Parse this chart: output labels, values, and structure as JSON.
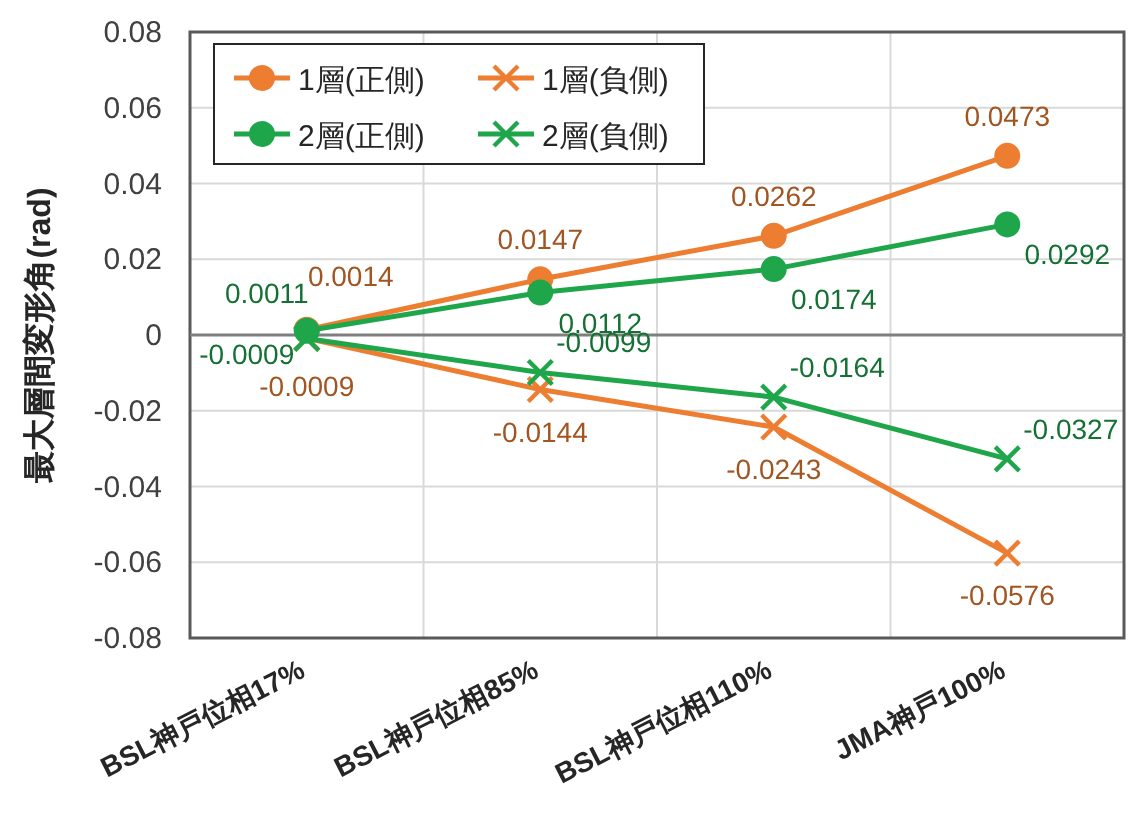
{
  "chart_data": {
    "type": "line",
    "ylabel": "最大層間変形角(rad)",
    "categories": [
      "BSL神戸位相17%",
      "BSL神戸位相85%",
      "BSL神戸位相110%",
      "JMA神戸100%"
    ],
    "series": [
      {
        "name": "1層(正側)",
        "color": "#ed7d31",
        "marker": "circle",
        "values": [
          0.0014,
          0.0147,
          0.0262,
          0.0473
        ]
      },
      {
        "name": "1層(負側)",
        "color": "#ed7d31",
        "marker": "cross",
        "values": [
          -0.0009,
          -0.0144,
          -0.0243,
          -0.0576
        ]
      },
      {
        "name": "2層(正側)",
        "color": "#1fa64b",
        "marker": "circle",
        "values": [
          0.0011,
          0.0112,
          0.0174,
          0.0292
        ]
      },
      {
        "name": "2層(負側)",
        "color": "#1fa64b",
        "marker": "cross",
        "values": [
          -0.0009,
          -0.0099,
          -0.0164,
          -0.0327
        ]
      }
    ],
    "ylim": [
      -0.08,
      0.08
    ],
    "yticks": [
      -0.08,
      -0.06,
      -0.04,
      -0.02,
      0,
      0.02,
      0.04,
      0.06,
      0.08
    ],
    "grid": true,
    "legend": "top left",
    "data_labels": true,
    "line_style": "solid"
  }
}
